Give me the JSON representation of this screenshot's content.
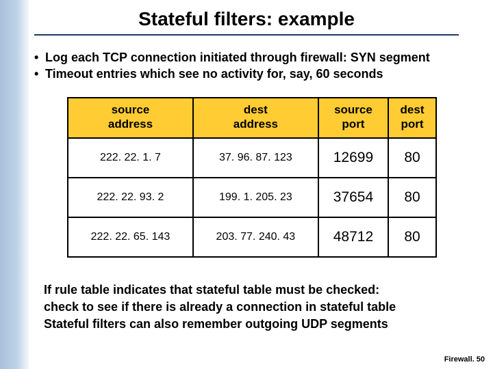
{
  "title": "Stateful filters: example",
  "bullets": [
    "Log each TCP connection initiated through firewall: SYN segment",
    "Timeout entries which see no activity for, say, 60 seconds"
  ],
  "table": {
    "headers": {
      "c0a": "source",
      "c0b": "address",
      "c1a": "dest",
      "c1b": "address",
      "c2a": "source",
      "c2b": "port",
      "c3a": "dest",
      "c3b": "port"
    },
    "rows": [
      {
        "src_addr": "222. 22. 1. 7",
        "dst_addr": "37. 96. 87. 123",
        "src_port": "12699",
        "dst_port": "80"
      },
      {
        "src_addr": "222. 22. 93. 2",
        "dst_addr": "199. 1. 205. 23",
        "src_port": "37654",
        "dst_port": "80"
      },
      {
        "src_addr": "222. 22. 65. 143",
        "dst_addr": "203. 77. 240. 43",
        "src_port": "48712",
        "dst_port": "80"
      }
    ],
    "header_bg": "#ffcc33",
    "border_color": "#000000"
  },
  "bottom": {
    "l1": "If rule table indicates that stateful table must be checked:",
    "l2": "check to see if there is already a connection in stateful table",
    "l3": "Stateful filters can also remember outgoing UDP segments"
  },
  "footer": "Firewall. 50"
}
